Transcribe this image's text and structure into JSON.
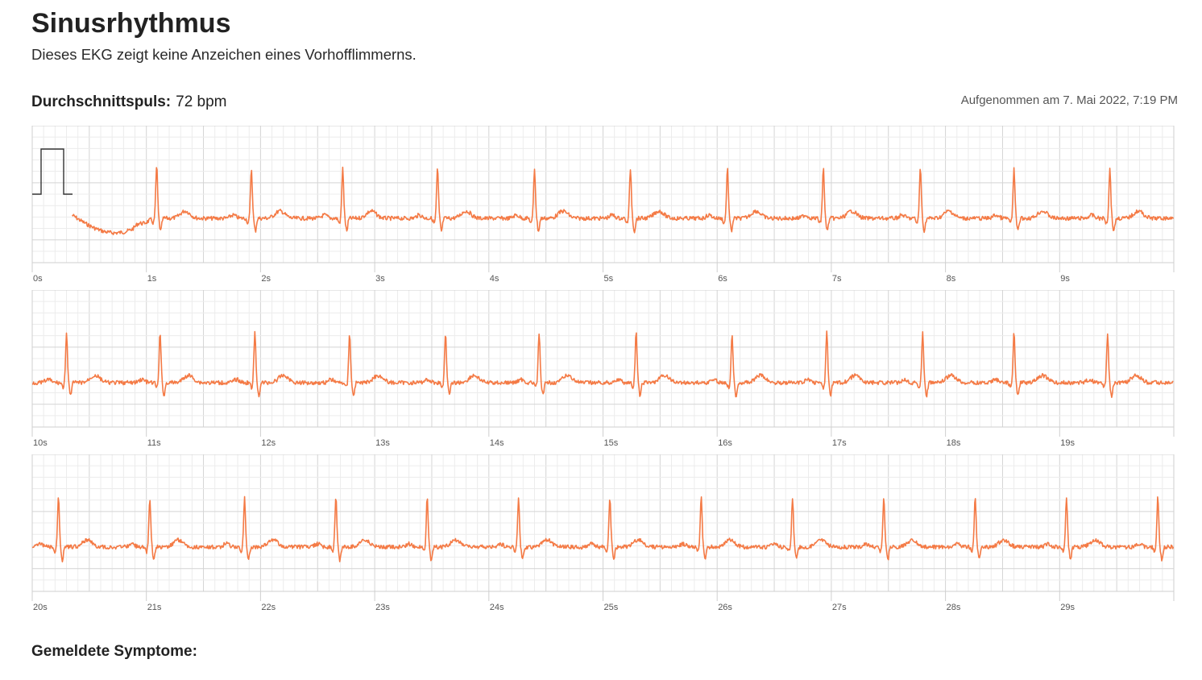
{
  "header": {
    "title": "Sinusrhythmus",
    "subtitle": "Dieses EKG zeigt keine Anzeichen eines Vorhofflimmerns.",
    "avg_pulse_label": "Durchschnittspuls:",
    "avg_pulse_value": "72 bpm",
    "recorded": "Aufgenommen am 7. Mai 2022, 7:19 PM"
  },
  "footer": {
    "symptoms_label": "Gemeldete Symptome:"
  },
  "colors": {
    "trace": "#f47a45",
    "grid_minor": "#ececec",
    "grid_major": "#d4d4d4",
    "calibration": "#333333"
  },
  "chart_data": {
    "type": "line",
    "seconds_per_strip": 10,
    "strips": [
      {
        "tick_labels": [
          "0s",
          "1s",
          "2s",
          "3s",
          "4s",
          "5s",
          "6s",
          "7s",
          "8s",
          "9s"
        ],
        "trace_start_s": 0.35,
        "beats_s": [
          1.09,
          1.92,
          2.72,
          3.55,
          4.4,
          5.24,
          6.09,
          6.93,
          7.78,
          8.6,
          9.44
        ],
        "has_calibration": true
      },
      {
        "tick_labels": [
          "10s",
          "11s",
          "12s",
          "13s",
          "14s",
          "15s",
          "16s",
          "17s",
          "18s",
          "19s"
        ],
        "trace_start_s": 10.0,
        "beats_s": [
          10.3,
          11.12,
          11.95,
          12.78,
          13.62,
          14.44,
          15.29,
          16.13,
          16.96,
          17.8,
          18.6,
          19.42
        ],
        "has_calibration": false
      },
      {
        "tick_labels": [
          "20s",
          "21s",
          "22s",
          "23s",
          "24s",
          "25s",
          "26s",
          "27s",
          "28s",
          "29s"
        ],
        "trace_start_s": 20.0,
        "beats_s": [
          20.23,
          21.03,
          21.86,
          22.66,
          23.46,
          24.26,
          25.06,
          25.86,
          26.66,
          27.46,
          28.26,
          29.06,
          29.86
        ],
        "has_calibration": false
      }
    ]
  }
}
